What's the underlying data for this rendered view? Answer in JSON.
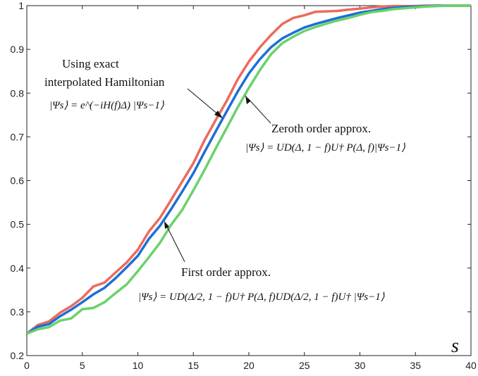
{
  "chart_data": {
    "type": "line",
    "title": "",
    "xlabel": "s",
    "ylabel": "",
    "xlim": [
      0,
      40
    ],
    "ylim": [
      0.2,
      1
    ],
    "xticks": [
      "0",
      "5",
      "10",
      "15",
      "20",
      "25",
      "30",
      "35",
      "40"
    ],
    "yticks": [
      "0.2",
      "0.3",
      "0.4",
      "0.5",
      "0.6",
      "0.7",
      "0.8",
      "0.9",
      "1"
    ],
    "grid": false,
    "x": [
      0,
      1,
      2,
      3,
      4,
      5,
      6,
      7,
      8,
      9,
      10,
      11,
      12,
      13,
      14,
      15,
      16,
      17,
      18,
      19,
      20,
      21,
      22,
      23,
      24,
      25,
      26,
      27,
      28,
      29,
      30,
      31,
      32,
      33,
      34,
      35,
      36,
      37,
      38,
      39,
      40
    ],
    "series": [
      {
        "color": "#ec6a5c",
        "values": [
          0.25,
          0.27,
          0.278,
          0.298,
          0.313,
          0.332,
          0.358,
          0.367,
          0.39,
          0.413,
          0.442,
          0.484,
          0.515,
          0.556,
          0.598,
          0.64,
          0.692,
          0.738,
          0.782,
          0.832,
          0.872,
          0.905,
          0.933,
          0.958,
          0.972,
          0.978,
          0.986,
          0.987,
          0.988,
          0.991,
          0.993,
          0.996,
          0.998,
          0.999,
          0.999,
          0.999,
          1.0,
          1.0,
          1.0,
          1.0,
          1.0
        ]
      },
      {
        "color": "#1c6fd6",
        "values": [
          0.25,
          0.266,
          0.272,
          0.29,
          0.305,
          0.322,
          0.34,
          0.355,
          0.377,
          0.402,
          0.428,
          0.467,
          0.497,
          0.535,
          0.575,
          0.617,
          0.665,
          0.712,
          0.758,
          0.804,
          0.845,
          0.878,
          0.905,
          0.925,
          0.938,
          0.95,
          0.958,
          0.965,
          0.972,
          0.978,
          0.984,
          0.988,
          0.992,
          0.995,
          0.997,
          0.998,
          0.999,
          1.0,
          1.0,
          1.0,
          1.0
        ]
      },
      {
        "color": "#6ad26a",
        "values": [
          0.25,
          0.26,
          0.265,
          0.28,
          0.285,
          0.306,
          0.309,
          0.322,
          0.343,
          0.363,
          0.393,
          0.425,
          0.458,
          0.499,
          0.533,
          0.578,
          0.624,
          0.673,
          0.72,
          0.768,
          0.812,
          0.853,
          0.889,
          0.914,
          0.929,
          0.942,
          0.951,
          0.959,
          0.966,
          0.972,
          0.979,
          0.985,
          0.988,
          0.992,
          0.994,
          0.996,
          0.998,
          0.999,
          1.0,
          1.0,
          1.0
        ]
      }
    ],
    "annotations": [
      {
        "id": "exact",
        "lines": [
          "Using exact",
          "interpolated Hamiltonian"
        ],
        "math": "|Ψs⟩ = e^(−iH(f)Δ) |Ψs−1⟩"
      },
      {
        "id": "zeroth",
        "lines": [
          "Zeroth order approx."
        ],
        "math": "|Ψs⟩ = UD(Δ, 1 − f)U† P(Δ, f)|Ψs−1⟩"
      },
      {
        "id": "first",
        "lines": [
          "First order approx."
        ],
        "math": "|Ψs⟩ = UD(Δ/2, 1 − f)U† P(Δ, f)UD(Δ/2, 1 − f)U† |Ψs−1⟩"
      }
    ]
  }
}
